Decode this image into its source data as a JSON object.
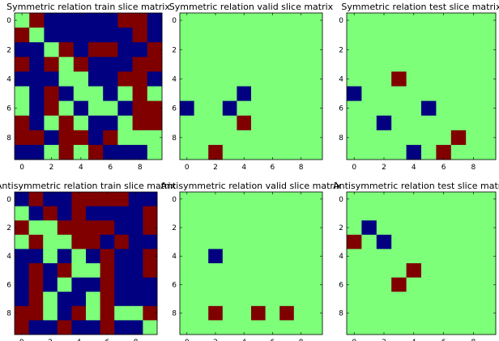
{
  "colors": {
    "neg": "#000080",
    "zero": "#7dff7a",
    "pos": "#800000",
    "frame": "#000000"
  },
  "chart_data": [
    {
      "type": "heatmap",
      "title": "Symmetric relation train slice matrix",
      "color_map": {
        "-1": "neg",
        "0": "zero",
        "1": "pos"
      },
      "x_ticks": [
        "0",
        "2",
        "4",
        "6",
        "8"
      ],
      "y_ticks": [
        "0",
        "2",
        "4",
        "6",
        "8"
      ],
      "matrix": [
        [
          0,
          1,
          -1,
          -1,
          -1,
          -1,
          -1,
          1,
          1,
          -1
        ],
        [
          1,
          0,
          -1,
          -1,
          -1,
          -1,
          -1,
          -1,
          1,
          -1
        ],
        [
          -1,
          -1,
          0,
          1,
          -1,
          1,
          1,
          -1,
          -1,
          1
        ],
        [
          1,
          -1,
          1,
          0,
          1,
          -1,
          -1,
          -1,
          1,
          1
        ],
        [
          -1,
          -1,
          -1,
          0,
          0,
          -1,
          -1,
          1,
          1,
          -1
        ],
        [
          0,
          -1,
          1,
          -1,
          0,
          0,
          -1,
          0,
          1,
          0
        ],
        [
          0,
          -1,
          1,
          0,
          -1,
          0,
          0,
          -1,
          1,
          1
        ],
        [
          1,
          -1,
          0,
          1,
          0,
          -1,
          -1,
          0,
          1,
          1
        ],
        [
          1,
          1,
          -1,
          1,
          1,
          -1,
          1,
          0,
          0,
          0
        ],
        [
          -1,
          -1,
          0,
          1,
          0,
          1,
          -1,
          -1,
          -1,
          0
        ]
      ]
    },
    {
      "type": "heatmap",
      "title": "Symmetric relation valid slice matrix",
      "color_map": {
        "-1": "neg",
        "0": "zero",
        "1": "pos"
      },
      "x_ticks": [
        "0",
        "2",
        "4",
        "6",
        "8"
      ],
      "y_ticks": [
        "0",
        "2",
        "4",
        "6",
        "8"
      ],
      "matrix": [
        [
          0,
          0,
          0,
          0,
          0,
          0,
          0,
          0,
          0,
          0
        ],
        [
          0,
          0,
          0,
          0,
          0,
          0,
          0,
          0,
          0,
          0
        ],
        [
          0,
          0,
          0,
          0,
          0,
          0,
          0,
          0,
          0,
          0
        ],
        [
          0,
          0,
          0,
          0,
          0,
          0,
          0,
          0,
          0,
          0
        ],
        [
          0,
          0,
          0,
          0,
          0,
          0,
          0,
          0,
          0,
          0
        ],
        [
          0,
          0,
          0,
          0,
          -1,
          0,
          0,
          0,
          0,
          0
        ],
        [
          -1,
          0,
          0,
          -1,
          0,
          0,
          0,
          0,
          0,
          0
        ],
        [
          0,
          0,
          0,
          0,
          1,
          0,
          0,
          0,
          0,
          0
        ],
        [
          0,
          0,
          0,
          0,
          0,
          0,
          0,
          0,
          0,
          0
        ],
        [
          0,
          0,
          1,
          0,
          0,
          0,
          0,
          0,
          0,
          0
        ]
      ]
    },
    {
      "type": "heatmap",
      "title": "Symmetric relation test slice matrix",
      "color_map": {
        "-1": "neg",
        "0": "zero",
        "1": "pos"
      },
      "x_ticks": [
        "0",
        "2",
        "4",
        "6",
        "8"
      ],
      "y_ticks": [
        "0",
        "2",
        "4",
        "6",
        "8"
      ],
      "matrix": [
        [
          0,
          0,
          0,
          0,
          0,
          0,
          0,
          0,
          0,
          0
        ],
        [
          0,
          0,
          0,
          0,
          0,
          0,
          0,
          0,
          0,
          0
        ],
        [
          0,
          0,
          0,
          0,
          0,
          0,
          0,
          0,
          0,
          0
        ],
        [
          0,
          0,
          0,
          0,
          0,
          0,
          0,
          0,
          0,
          0
        ],
        [
          0,
          0,
          0,
          1,
          0,
          0,
          0,
          0,
          0,
          0
        ],
        [
          -1,
          0,
          0,
          0,
          0,
          0,
          0,
          0,
          0,
          0
        ],
        [
          0,
          0,
          0,
          0,
          0,
          -1,
          0,
          0,
          0,
          0
        ],
        [
          0,
          0,
          -1,
          0,
          0,
          0,
          0,
          0,
          0,
          0
        ],
        [
          0,
          0,
          0,
          0,
          0,
          0,
          0,
          1,
          0,
          0
        ],
        [
          0,
          0,
          0,
          0,
          -1,
          0,
          1,
          0,
          0,
          0
        ]
      ]
    },
    {
      "type": "heatmap",
      "title": "Antisymmetric relation train slice matrix",
      "color_map": {
        "-1": "neg",
        "0": "zero",
        "1": "pos"
      },
      "x_ticks": [
        "0",
        "2",
        "4",
        "6",
        "8"
      ],
      "y_ticks": [
        "0",
        "2",
        "4",
        "6",
        "8"
      ],
      "matrix": [
        [
          -1,
          1,
          -1,
          -1,
          1,
          1,
          1,
          1,
          -1,
          -1
        ],
        [
          0,
          -1,
          1,
          -1,
          1,
          -1,
          -1,
          -1,
          -1,
          1
        ],
        [
          1,
          0,
          0,
          1,
          1,
          1,
          1,
          -1,
          -1,
          1
        ],
        [
          0,
          1,
          0,
          0,
          1,
          1,
          -1,
          1,
          -1,
          -1
        ],
        [
          -1,
          -1,
          0,
          -1,
          0,
          -1,
          1,
          -1,
          -1,
          1
        ],
        [
          -1,
          1,
          -1,
          1,
          0,
          0,
          1,
          -1,
          -1,
          1
        ],
        [
          -1,
          1,
          -1,
          0,
          -1,
          -1,
          1,
          -1,
          -1,
          -1
        ],
        [
          -1,
          1,
          0,
          -1,
          -1,
          0,
          1,
          -1,
          -1,
          -1
        ],
        [
          1,
          1,
          0,
          -1,
          1,
          0,
          1,
          0,
          0,
          1
        ],
        [
          1,
          -1,
          -1,
          1,
          -1,
          -1,
          1,
          -1,
          -1,
          0
        ]
      ]
    },
    {
      "type": "heatmap",
      "title": "Antisymmetric relation valid slice matrix",
      "color_map": {
        "-1": "neg",
        "0": "zero",
        "1": "pos"
      },
      "x_ticks": [
        "0",
        "2",
        "4",
        "6",
        "8"
      ],
      "y_ticks": [
        "0",
        "2",
        "4",
        "6",
        "8"
      ],
      "matrix": [
        [
          0,
          0,
          0,
          0,
          0,
          0,
          0,
          0,
          0,
          0
        ],
        [
          0,
          0,
          0,
          0,
          0,
          0,
          0,
          0,
          0,
          0
        ],
        [
          0,
          0,
          0,
          0,
          0,
          0,
          0,
          0,
          0,
          0
        ],
        [
          0,
          0,
          0,
          0,
          0,
          0,
          0,
          0,
          0,
          0
        ],
        [
          0,
          0,
          -1,
          0,
          0,
          0,
          0,
          0,
          0,
          0
        ],
        [
          0,
          0,
          0,
          0,
          0,
          0,
          0,
          0,
          0,
          0
        ],
        [
          0,
          0,
          0,
          0,
          0,
          0,
          0,
          0,
          0,
          0
        ],
        [
          0,
          0,
          0,
          0,
          0,
          0,
          0,
          0,
          0,
          0
        ],
        [
          0,
          0,
          1,
          0,
          0,
          1,
          0,
          1,
          0,
          0
        ],
        [
          0,
          0,
          0,
          0,
          0,
          0,
          0,
          0,
          0,
          0
        ]
      ]
    },
    {
      "type": "heatmap",
      "title": "Antisymmetric relation test slice matrix",
      "color_map": {
        "-1": "neg",
        "0": "zero",
        "1": "pos"
      },
      "x_ticks": [
        "0",
        "2",
        "4",
        "6",
        "8"
      ],
      "y_ticks": [
        "0",
        "2",
        "4",
        "6",
        "8"
      ],
      "matrix": [
        [
          0,
          0,
          0,
          0,
          0,
          0,
          0,
          0,
          0,
          0
        ],
        [
          0,
          0,
          0,
          0,
          0,
          0,
          0,
          0,
          0,
          0
        ],
        [
          0,
          -1,
          0,
          0,
          0,
          0,
          0,
          0,
          0,
          0
        ],
        [
          1,
          0,
          -1,
          0,
          0,
          0,
          0,
          0,
          0,
          0
        ],
        [
          0,
          0,
          0,
          0,
          0,
          0,
          0,
          0,
          0,
          0
        ],
        [
          0,
          0,
          0,
          0,
          1,
          0,
          0,
          0,
          0,
          0
        ],
        [
          0,
          0,
          0,
          1,
          0,
          0,
          0,
          0,
          0,
          0
        ],
        [
          0,
          0,
          0,
          0,
          0,
          0,
          0,
          0,
          0,
          0
        ],
        [
          0,
          0,
          0,
          0,
          0,
          0,
          0,
          0,
          0,
          0
        ],
        [
          0,
          0,
          0,
          0,
          0,
          0,
          0,
          0,
          0,
          0
        ]
      ]
    }
  ]
}
